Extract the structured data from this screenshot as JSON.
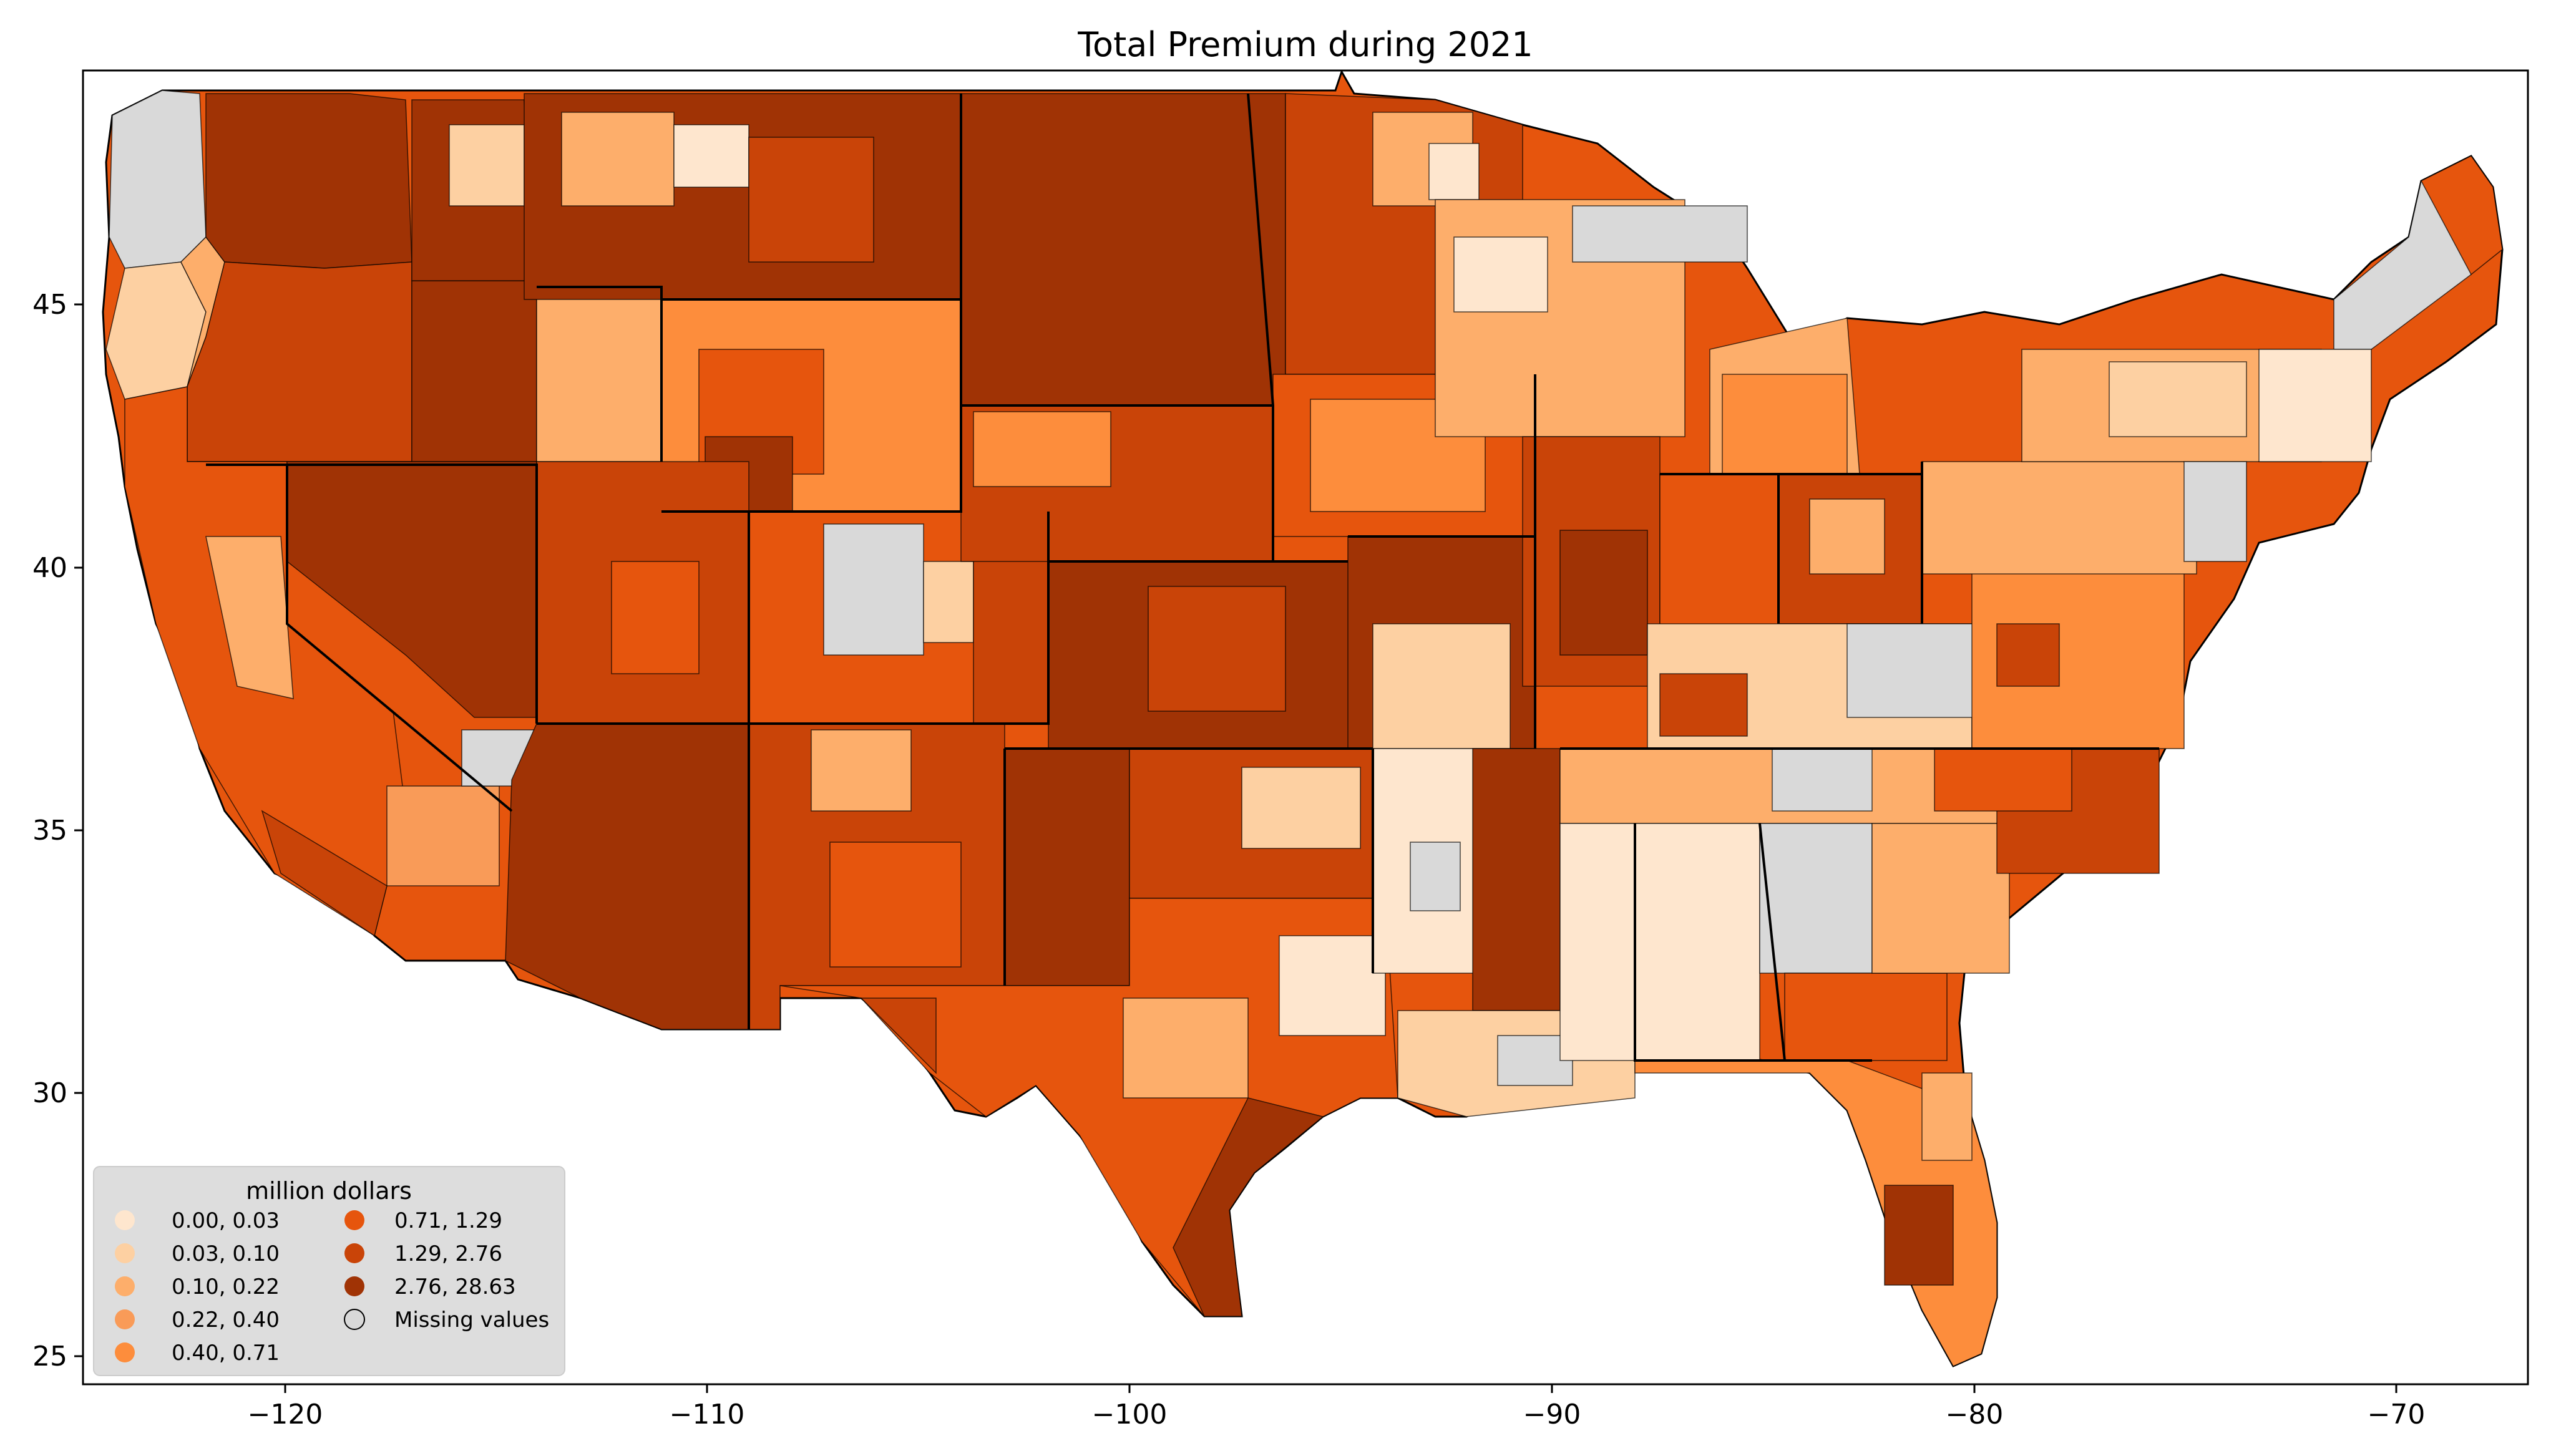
{
  "title": "Total  Premium during 2021",
  "map": {
    "type": "choropleth",
    "region": "contiguous United States (county level)",
    "x_ticks": [
      "−120",
      "−110",
      "−100",
      "−90",
      "−80",
      "−70"
    ],
    "y_ticks": [
      "45",
      "40",
      "35",
      "30",
      "25"
    ],
    "xlim": [
      -125,
      -66.5
    ],
    "ylim": [
      24.5,
      49.5
    ],
    "legend": {
      "title": "million dollars",
      "placement": "lower-left",
      "items": [
        {
          "label": "0.00,  0.03",
          "color": "#fee6ce"
        },
        {
          "label": "0.03,  0.10",
          "color": "#fdd0a2"
        },
        {
          "label": "0.10,  0.22",
          "color": "#fdae6b"
        },
        {
          "label": "0.22,  0.40",
          "color": "#f99b58"
        },
        {
          "label": "0.40,  0.71",
          "color": "#fd8d3c"
        },
        {
          "label": "0.71,  1.29",
          "color": "#e6550d"
        },
        {
          "label": "1.29,  2.76",
          "color": "#c94408"
        },
        {
          "label": "2.76, 28.63",
          "color": "#a03305"
        },
        {
          "label": "Missing values",
          "color": "#d9d9d9"
        }
      ]
    }
  }
}
